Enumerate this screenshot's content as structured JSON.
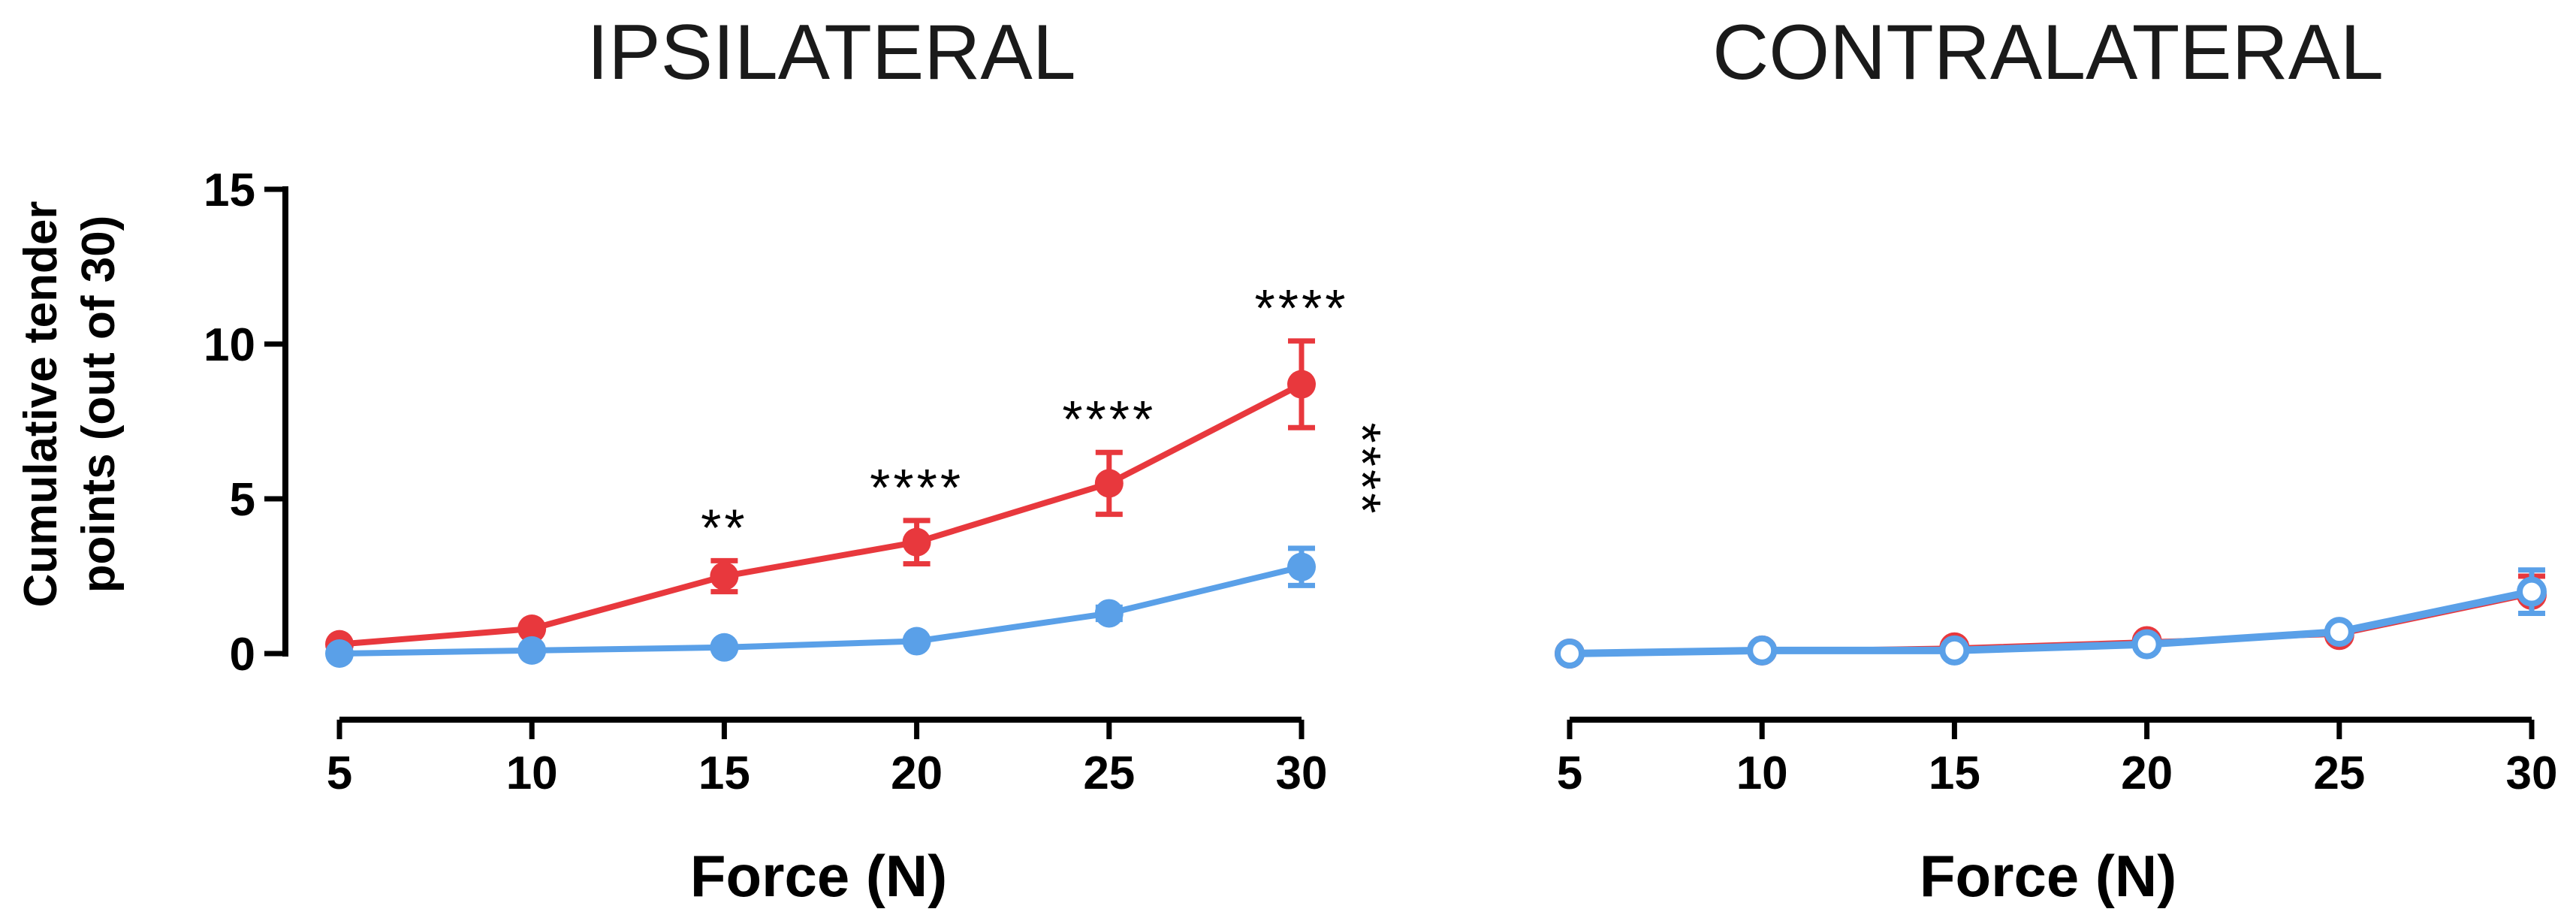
{
  "chart_data": [
    {
      "type": "line",
      "title": "IPSILATERAL",
      "xlabel": "Force (N)",
      "ylabel": [
        "Cumulative tender",
        "points (out of 30)"
      ],
      "x": [
        5,
        10,
        15,
        20,
        25,
        30
      ],
      "xticks": [
        "5",
        "10",
        "15",
        "20",
        "25",
        "30"
      ],
      "ylim": [
        0,
        15
      ],
      "yticks": [
        "0",
        "5",
        "10",
        "15"
      ],
      "series": [
        {
          "name": "red",
          "color": "#e8383d",
          "marker": "filled",
          "values": [
            0.3,
            0.8,
            2.5,
            3.6,
            5.5,
            8.7
          ],
          "errors": [
            0.1,
            0.15,
            0.5,
            0.7,
            1.0,
            1.4
          ]
        },
        {
          "name": "blue",
          "color": "#5aa0e8",
          "marker": "filled",
          "values": [
            0.0,
            0.1,
            0.2,
            0.4,
            1.3,
            2.8
          ],
          "errors": [
            0.05,
            0.05,
            0.1,
            0.1,
            0.2,
            0.6
          ]
        }
      ],
      "annotations": [
        {
          "x": 15,
          "text": "**"
        },
        {
          "x": 20,
          "text": "****"
        },
        {
          "x": 25,
          "text": "****"
        },
        {
          "x": 30,
          "text": "****"
        }
      ],
      "side_annotation": "****"
    },
    {
      "type": "line",
      "title": "CONTRALATERAL",
      "xlabel": "Force (N)",
      "x": [
        5,
        10,
        15,
        20,
        25,
        30
      ],
      "xticks": [
        "5",
        "10",
        "15",
        "20",
        "25",
        "30"
      ],
      "ylim": [
        0,
        15
      ],
      "series": [
        {
          "name": "red",
          "color": "#e8383d",
          "marker": "open",
          "values": [
            0.0,
            0.1,
            0.2,
            0.4,
            0.6,
            1.9
          ],
          "errors": [
            0.05,
            0.05,
            0.1,
            0.1,
            0.15,
            0.6
          ]
        },
        {
          "name": "blue",
          "color": "#5aa0e8",
          "marker": "open",
          "values": [
            0.0,
            0.1,
            0.1,
            0.3,
            0.7,
            2.0
          ],
          "errors": [
            0.05,
            0.05,
            0.1,
            0.1,
            0.15,
            0.7
          ]
        }
      ]
    }
  ]
}
